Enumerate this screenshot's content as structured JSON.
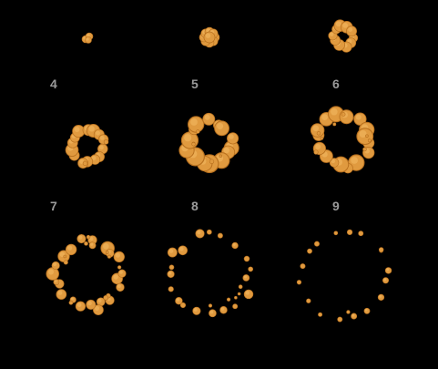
{
  "sprite_sheet": {
    "frame_labels": [
      "4",
      "5",
      "6",
      "7",
      "8",
      "9"
    ],
    "colors": {
      "background": "#000000",
      "puff_fill": "#e09a3f",
      "puff_highlight": "#f0b35c",
      "puff_shadow": "#b8701e",
      "label": "#9a9a9a"
    }
  }
}
